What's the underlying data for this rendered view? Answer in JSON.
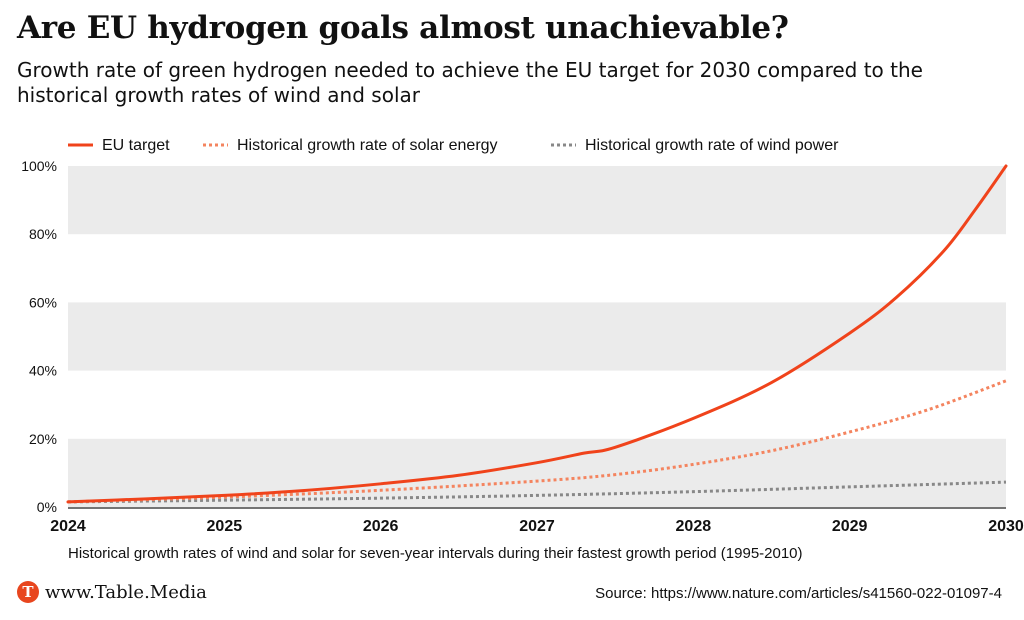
{
  "header": {
    "title": "Are EU hydrogen goals almost unachievable?",
    "subtitle": "Growth rate of green hydrogen needed to achieve the EU target for 2030 compared to the historical growth rates of wind and solar"
  },
  "footer": {
    "logo_glyph": "T",
    "site": "www.Table.Media",
    "source": "Source: https://www.nature.com/articles/s41560-022-01097-4"
  },
  "colors": {
    "eu": "#f0431b",
    "solar": "#f4845f",
    "wind": "#888888",
    "band": "#ebebeb"
  },
  "chart_data": {
    "type": "line",
    "xlabel": "Historical growth rates of wind and solar for seven-year intervals during their fastest growth period (1995-2010)",
    "ylabel": "",
    "x_ticks": [
      "2024",
      "2025",
      "2026",
      "2027",
      "2028",
      "2029",
      "2030"
    ],
    "y_ticks": [
      "0%",
      "20%",
      "40%",
      "60%",
      "80%",
      "100%"
    ],
    "xlim": [
      2024,
      2030
    ],
    "ylim": [
      0,
      100
    ],
    "grid": "alternating horizontal bands",
    "legend_position": "top-left",
    "series": [
      {
        "name": "EU target",
        "style": "solid",
        "x": [
          2024,
          2024.5,
          2025,
          2025.5,
          2026,
          2026.5,
          2027,
          2027.3,
          2027.5,
          2028,
          2028.5,
          2029,
          2029.3,
          2029.6,
          2029.8,
          2030
        ],
        "y": [
          1.5,
          2.4,
          3.4,
          4.8,
          6.8,
          9.3,
          13.0,
          15.8,
          17.5,
          26.0,
          36.5,
          51.0,
          61.5,
          75.0,
          87.0,
          100.0
        ]
      },
      {
        "name": "Historical growth rate of solar energy",
        "style": "dotted",
        "x": [
          2024,
          2025,
          2026,
          2027,
          2027.5,
          2028,
          2028.5,
          2029,
          2029.5,
          2030
        ],
        "y": [
          1.5,
          2.9,
          4.9,
          7.6,
          9.5,
          12.5,
          16.5,
          22.0,
          28.5,
          37.0
        ]
      },
      {
        "name": "Historical growth rate of wind power",
        "style": "dotted",
        "x": [
          2024,
          2025,
          2026,
          2027,
          2028,
          2029,
          2030
        ],
        "y": [
          1.5,
          2.0,
          2.6,
          3.4,
          4.5,
          5.9,
          7.3
        ]
      }
    ]
  }
}
